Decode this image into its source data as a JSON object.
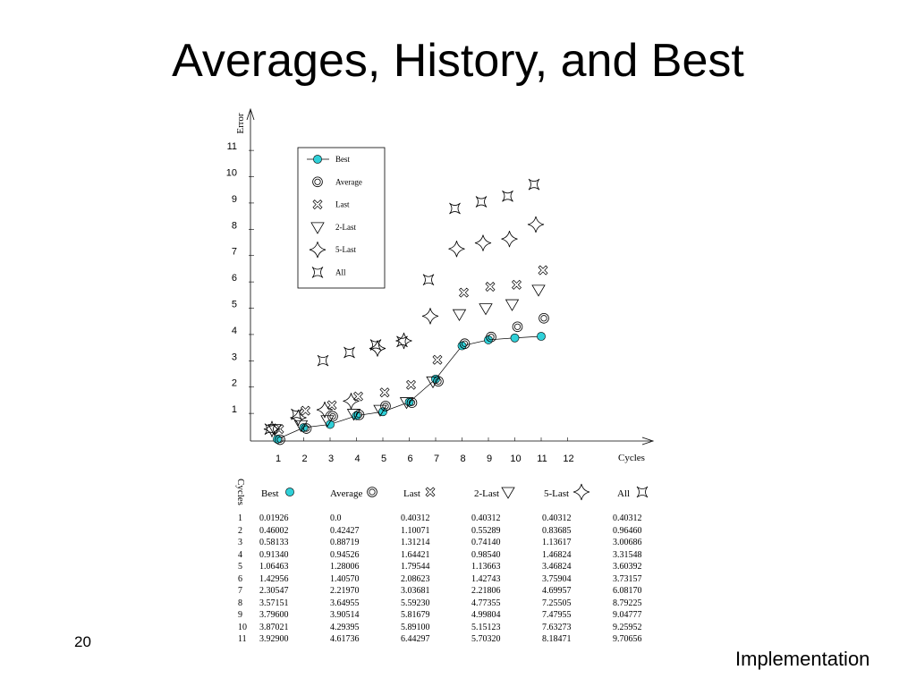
{
  "slide": {
    "title": "Averages, History, and Best",
    "number": "20",
    "footer": "Implementation"
  },
  "chart_data": {
    "type": "scatter",
    "xlabel": "Cycles",
    "ylabel": "Error",
    "x_ticks": [
      1,
      2,
      3,
      4,
      5,
      6,
      7,
      8,
      9,
      10,
      11,
      12
    ],
    "y_ticks": [
      1,
      2,
      3,
      4,
      5,
      6,
      7,
      8,
      9,
      10,
      11
    ],
    "xlim": [
      0.4,
      13.0
    ],
    "ylim": [
      -0.1,
      12.5
    ],
    "legend_position": "top-center",
    "series": [
      {
        "name": "Best",
        "marker": "filled-circle",
        "line": true,
        "color": "#2fd0d8",
        "points": [
          [
            1,
            0.01926
          ],
          [
            2,
            0.46002
          ],
          [
            3,
            0.58133
          ],
          [
            4,
            0.9134
          ],
          [
            5,
            1.06463
          ],
          [
            6,
            1.42956
          ],
          [
            7,
            2.30547
          ],
          [
            8,
            3.57151
          ],
          [
            9,
            3.796
          ],
          [
            10,
            3.87021
          ],
          [
            11,
            3.929
          ]
        ]
      },
      {
        "name": "Average",
        "marker": "double-circle",
        "line": false,
        "points": [
          [
            1,
            0.0
          ],
          [
            2,
            0.42427
          ],
          [
            3,
            0.88719
          ],
          [
            4,
            0.94526
          ],
          [
            5,
            1.28006
          ],
          [
            6,
            1.4057
          ],
          [
            7,
            2.2197
          ],
          [
            8,
            3.64955
          ],
          [
            9,
            3.90514
          ],
          [
            10,
            4.29395
          ],
          [
            11,
            4.61736
          ]
        ]
      },
      {
        "name": "Last",
        "marker": "x-cross",
        "line": false,
        "points": [
          [
            1,
            0.40312
          ],
          [
            2,
            1.10071
          ],
          [
            3,
            1.31214
          ],
          [
            4,
            1.64421
          ],
          [
            5,
            1.79544
          ],
          [
            6,
            2.08623
          ],
          [
            7,
            3.03681
          ],
          [
            8,
            5.5923
          ],
          [
            9,
            5.81679
          ],
          [
            10,
            5.891
          ],
          [
            11,
            6.44297
          ]
        ]
      },
      {
        "name": "2-Last",
        "marker": "triangle-down",
        "line": false,
        "points": [
          [
            1,
            0.40312
          ],
          [
            2,
            0.55289
          ],
          [
            3,
            0.7414
          ],
          [
            4,
            0.9854
          ],
          [
            5,
            1.13663
          ],
          [
            6,
            1.42743
          ],
          [
            7,
            2.21806
          ],
          [
            8,
            4.77355
          ],
          [
            9,
            4.99804
          ],
          [
            10,
            5.15123
          ],
          [
            11,
            5.7032
          ]
        ]
      },
      {
        "name": "5-Last",
        "marker": "star4",
        "line": false,
        "points": [
          [
            1,
            0.40312
          ],
          [
            2,
            0.83685
          ],
          [
            3,
            1.13617
          ],
          [
            4,
            1.46824
          ],
          [
            5,
            3.46824
          ],
          [
            6,
            3.75904
          ],
          [
            7,
            4.69957
          ],
          [
            8,
            7.25505
          ],
          [
            9,
            7.47955
          ],
          [
            10,
            7.63273
          ],
          [
            11,
            8.18471
          ]
        ]
      },
      {
        "name": "All",
        "marker": "bowtie",
        "line": false,
        "points": [
          [
            1,
            0.40312
          ],
          [
            2,
            0.9646
          ],
          [
            3,
            3.00686
          ],
          [
            4,
            3.31548
          ],
          [
            5,
            3.60392
          ],
          [
            6,
            3.73157
          ],
          [
            7,
            6.0817
          ],
          [
            8,
            8.79225
          ],
          [
            9,
            9.04777
          ],
          [
            10,
            9.25952
          ],
          [
            11,
            9.70656
          ]
        ]
      }
    ],
    "table": {
      "header_rotated": "Cycles",
      "columns": [
        "Best",
        "Average",
        "Last",
        "2-Last",
        "5-Last",
        "All"
      ],
      "rows": [
        [
          "1",
          "0.01926",
          "0.0",
          "0.40312",
          "0.40312",
          "0.40312",
          "0.40312"
        ],
        [
          "2",
          "0.46002",
          "0.42427",
          "1.10071",
          "0.55289",
          "0.83685",
          "0.96460"
        ],
        [
          "3",
          "0.58133",
          "0.88719",
          "1.31214",
          "0.74140",
          "1.13617",
          "3.00686"
        ],
        [
          "4",
          "0.91340",
          "0.94526",
          "1.64421",
          "0.98540",
          "1.46824",
          "3.31548"
        ],
        [
          "5",
          "1.06463",
          "1.28006",
          "1.79544",
          "1.13663",
          "3.46824",
          "3.60392"
        ],
        [
          "6",
          "1.42956",
          "1.40570",
          "2.08623",
          "1.42743",
          "3.75904",
          "3.73157"
        ],
        [
          "7",
          "2.30547",
          "2.21970",
          "3.03681",
          "2.21806",
          "4.69957",
          "6.08170"
        ],
        [
          "8",
          "3.57151",
          "3.64955",
          "5.59230",
          "4.77355",
          "7.25505",
          "8.79225"
        ],
        [
          "9",
          "3.79600",
          "3.90514",
          "5.81679",
          "4.99804",
          "7.47955",
          "9.04777"
        ],
        [
          "10",
          "3.87021",
          "4.29395",
          "5.89100",
          "5.15123",
          "7.63273",
          "9.25952"
        ],
        [
          "11",
          "3.92900",
          "4.61736",
          "6.44297",
          "5.70320",
          "8.18471",
          "9.70656"
        ]
      ]
    }
  }
}
